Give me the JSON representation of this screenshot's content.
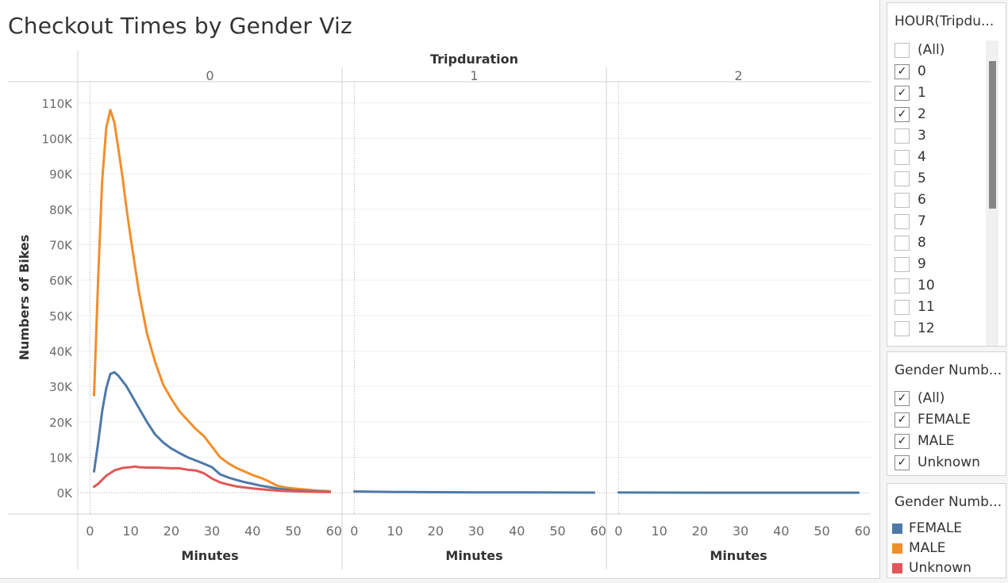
{
  "title": "Checkout Times by Gender Viz",
  "colors": {
    "FEMALE": "#4e79a7",
    "MALE": "#f28e2b",
    "Unknown": "#e15759"
  },
  "hour_filter": {
    "title": "HOUR(Tripdu...",
    "items": [
      {
        "label": "(All)",
        "checked": false
      },
      {
        "label": "0",
        "checked": true
      },
      {
        "label": "1",
        "checked": true
      },
      {
        "label": "2",
        "checked": true
      },
      {
        "label": "3",
        "checked": false
      },
      {
        "label": "4",
        "checked": false
      },
      {
        "label": "5",
        "checked": false
      },
      {
        "label": "6",
        "checked": false
      },
      {
        "label": "7",
        "checked": false
      },
      {
        "label": "8",
        "checked": false
      },
      {
        "label": "9",
        "checked": false
      },
      {
        "label": "10",
        "checked": false
      },
      {
        "label": "11",
        "checked": false
      },
      {
        "label": "12",
        "checked": false
      }
    ]
  },
  "gender_filter": {
    "title": "Gender Numb...",
    "items": [
      {
        "label": "(All)",
        "checked": true
      },
      {
        "label": "FEMALE",
        "checked": true
      },
      {
        "label": "MALE",
        "checked": true
      },
      {
        "label": "Unknown",
        "checked": true
      }
    ]
  },
  "gender_legend": {
    "title": "Gender Numb...",
    "items": [
      {
        "label": "FEMALE",
        "color_key": "FEMALE"
      },
      {
        "label": "MALE",
        "color_key": "MALE"
      },
      {
        "label": "Unknown",
        "color_key": "Unknown"
      }
    ]
  },
  "chart_data": {
    "type": "line",
    "header": "Tripduration",
    "ylabel": "Numbers of Bikes",
    "xlabel": "Minutes",
    "ylim": [
      -6000,
      116000
    ],
    "yticks": [
      0,
      10000,
      20000,
      30000,
      40000,
      50000,
      60000,
      70000,
      80000,
      90000,
      100000,
      110000
    ],
    "ytick_labels": [
      "0K",
      "10K",
      "20K",
      "30K",
      "40K",
      "50K",
      "60K",
      "70K",
      "80K",
      "90K",
      "100K",
      "110K"
    ],
    "xlim": [
      -3,
      62
    ],
    "xticks": [
      0,
      10,
      20,
      30,
      40,
      50,
      60
    ],
    "panels": [
      {
        "label": "0",
        "series": [
          {
            "name": "MALE",
            "x": [
              1,
              2,
              3,
              4,
              5,
              6,
              7,
              8,
              9,
              10,
              12,
              14,
              16,
              18,
              20,
              22,
              24,
              26,
              28,
              30,
              32,
              34,
              36,
              38,
              40,
              42,
              44,
              46,
              48,
              50,
              52,
              54,
              56,
              58,
              59
            ],
            "values": [
              27500,
              60000,
              88000,
              103000,
              108000,
              104500,
              97000,
              89000,
              80000,
              72000,
              57000,
              45000,
              37000,
              30500,
              26500,
              23000,
              20500,
              18000,
              16000,
              13000,
              10000,
              8300,
              7000,
              6000,
              5000,
              4200,
              3200,
              2000,
              1500,
              1200,
              1000,
              800,
              600,
              500,
              450
            ]
          },
          {
            "name": "FEMALE",
            "x": [
              1,
              2,
              3,
              4,
              5,
              6,
              7,
              8,
              9,
              10,
              12,
              14,
              16,
              18,
              20,
              22,
              24,
              26,
              28,
              30,
              32,
              34,
              36,
              38,
              40,
              42,
              44,
              46,
              48,
              50,
              52,
              54,
              56,
              58,
              59
            ],
            "values": [
              6000,
              14000,
              23000,
              29500,
              33500,
              34000,
              33000,
              31500,
              30000,
              28000,
              24000,
              20000,
              16500,
              14200,
              12500,
              11200,
              10000,
              9100,
              8200,
              7200,
              5200,
              4300,
              3600,
              3000,
              2500,
              2000,
              1600,
              1200,
              900,
              700,
              550,
              450,
              350,
              280,
              250
            ]
          },
          {
            "name": "Unknown",
            "x": [
              1,
              2,
              4,
              6,
              8,
              10,
              11,
              12,
              14,
              16,
              18,
              20,
              22,
              24,
              26,
              28,
              30,
              32,
              34,
              36,
              38,
              40,
              42,
              44,
              46,
              48,
              50,
              52,
              54,
              56,
              58,
              59
            ],
            "values": [
              1700,
              2500,
              4800,
              6300,
              7000,
              7200,
              7400,
              7200,
              7100,
              7100,
              7000,
              6900,
              6900,
              6500,
              6300,
              5500,
              4000,
              2900,
              2300,
              1800,
              1500,
              1200,
              1000,
              800,
              600,
              500,
              400,
              350,
              300,
              250,
              200,
              180
            ]
          }
        ]
      },
      {
        "label": "1",
        "series": [
          {
            "name": "FEMALE",
            "x": [
              0,
              10,
              20,
              30,
              40,
              50,
              59
            ],
            "values": [
              350,
              230,
              150,
              100,
              80,
              60,
              50
            ]
          }
        ]
      },
      {
        "label": "2",
        "series": [
          {
            "name": "FEMALE",
            "x": [
              0,
              10,
              20,
              30,
              40,
              50,
              59
            ],
            "values": [
              60,
              40,
              30,
              25,
              20,
              20,
              15
            ]
          }
        ]
      }
    ]
  }
}
